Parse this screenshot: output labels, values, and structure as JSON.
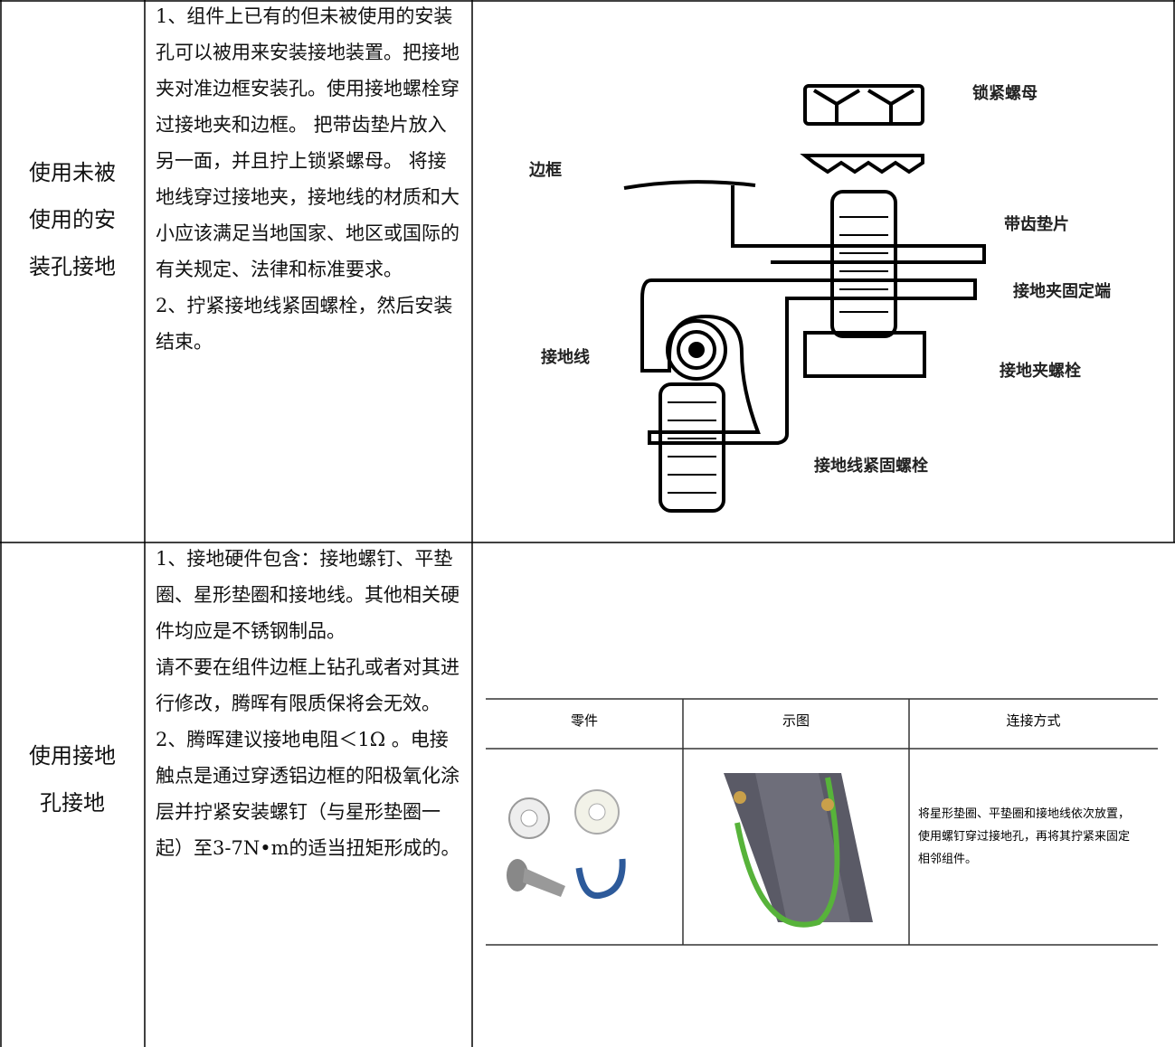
{
  "table": {
    "rows": [
      {
        "label": "使用未被使用的安装孔接地",
        "paragraphs": [
          "1、组件上已有的但未被使用的安装孔可以被用来安装接地装置。把接地夹对准边框安装孔。使用接地螺栓穿过接地夹和边框。 把带齿垫片放入另一面，并且拧上锁紧螺母。 将接地线穿过接地夹，接地线的材质和大小应该满足当地国家、地区或国际的有关规定、法律和标准要求。",
          "2、拧紧接地线紧固螺栓，然后安装结束。"
        ],
        "diagram": {
          "labels": [
            "锁紧螺母",
            "边框",
            "带齿垫片",
            "接地夹固定端",
            "接地线",
            "接地夹螺栓",
            "接地线紧固螺栓"
          ]
        }
      },
      {
        "label": "使用接地孔接地",
        "paragraphs": [
          "1、接地硬件包含：接地螺钉、平垫圈、星形垫圈和接地线。其他相关硬件均应是不锈钢制品。",
          "请不要在组件边框上钻孔或者对其进行修改，腾晖有限质保将会无效。",
          "2、腾晖建议接地电阻＜1Ω 。电接触点是通过穿透铝边框的阳极氧化涂层并拧紧安装螺钉（与星形垫圈一起）至3-7N•m的适当扭矩形成的。"
        ],
        "inner_table": {
          "headers": [
            "零件",
            "示图",
            "连接方式"
          ],
          "cell": "将星形垫圈、平垫圈和接地线依次放置，使用螺钉穿过接地孔，再将其拧紧来固定相邻组件。"
        }
      }
    ]
  }
}
